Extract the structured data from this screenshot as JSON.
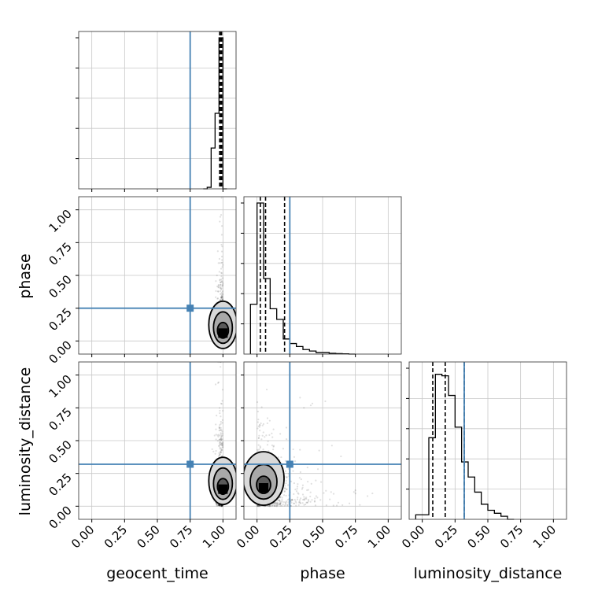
{
  "chart_data": {
    "type": "corner",
    "parameters": [
      "geocent_time",
      "phase",
      "luminosity_distance"
    ],
    "axis_range": [
      -0.1,
      1.1
    ],
    "ticks": [
      0.0,
      0.25,
      0.5,
      0.75,
      1.0
    ],
    "tick_labels": [
      "0.00",
      "0.25",
      "0.50",
      "0.75",
      "1.00"
    ],
    "grid": true,
    "truth_color": "#4682b4",
    "truths": {
      "geocent_time": 0.75,
      "phase": 0.25,
      "luminosity_distance": 0.32
    },
    "histograms": {
      "geocent_time": {
        "bin_edges": [
          0.85,
          0.88,
          0.91,
          0.94,
          0.97,
          1.0,
          1.03
        ],
        "heights": [
          0.0,
          0.01,
          0.27,
          0.5,
          1.0,
          0.0
        ],
        "quantiles": [
          0.975,
          0.985,
          0.99
        ]
      },
      "phase": {
        "bin_edges": [
          -0.05,
          0.0,
          0.05,
          0.1,
          0.15,
          0.2,
          0.25,
          0.3,
          0.35,
          0.4,
          0.45,
          0.5,
          0.55,
          0.6,
          0.65,
          0.7,
          0.75
        ],
        "heights": [
          0.33,
          1.0,
          0.5,
          0.3,
          0.23,
          0.1,
          0.07,
          0.05,
          0.03,
          0.02,
          0.01,
          0.01,
          0.005,
          0.003,
          0.002,
          0.0
        ],
        "quantiles": [
          0.025,
          0.065,
          0.21
        ]
      },
      "luminosity_distance": {
        "bin_edges": [
          -0.05,
          0.0,
          0.05,
          0.1,
          0.15,
          0.2,
          0.25,
          0.3,
          0.35,
          0.4,
          0.45,
          0.5,
          0.55,
          0.6,
          0.65,
          0.7
        ],
        "heights": [
          0.03,
          0.03,
          0.54,
          0.96,
          0.95,
          0.82,
          0.61,
          0.38,
          0.28,
          0.18,
          0.1,
          0.06,
          0.04,
          0.02,
          0.0
        ],
        "quantiles": [
          0.08,
          0.175,
          0.32
        ]
      }
    },
    "scatter_panels": [
      {
        "x": "geocent_time",
        "y": "phase",
        "density_peak": [
          1.0,
          0.06
        ],
        "x_spread": 0.02,
        "y_scale": 0.11
      },
      {
        "x": "geocent_time",
        "y": "luminosity_distance",
        "density_peak": [
          1.0,
          0.13
        ],
        "x_spread": 0.02,
        "y_scale": 0.16
      },
      {
        "x": "phase",
        "y": "luminosity_distance",
        "density_peak": [
          0.05,
          0.14
        ],
        "x_spread": 0.13,
        "y_scale": 0.15
      }
    ]
  }
}
